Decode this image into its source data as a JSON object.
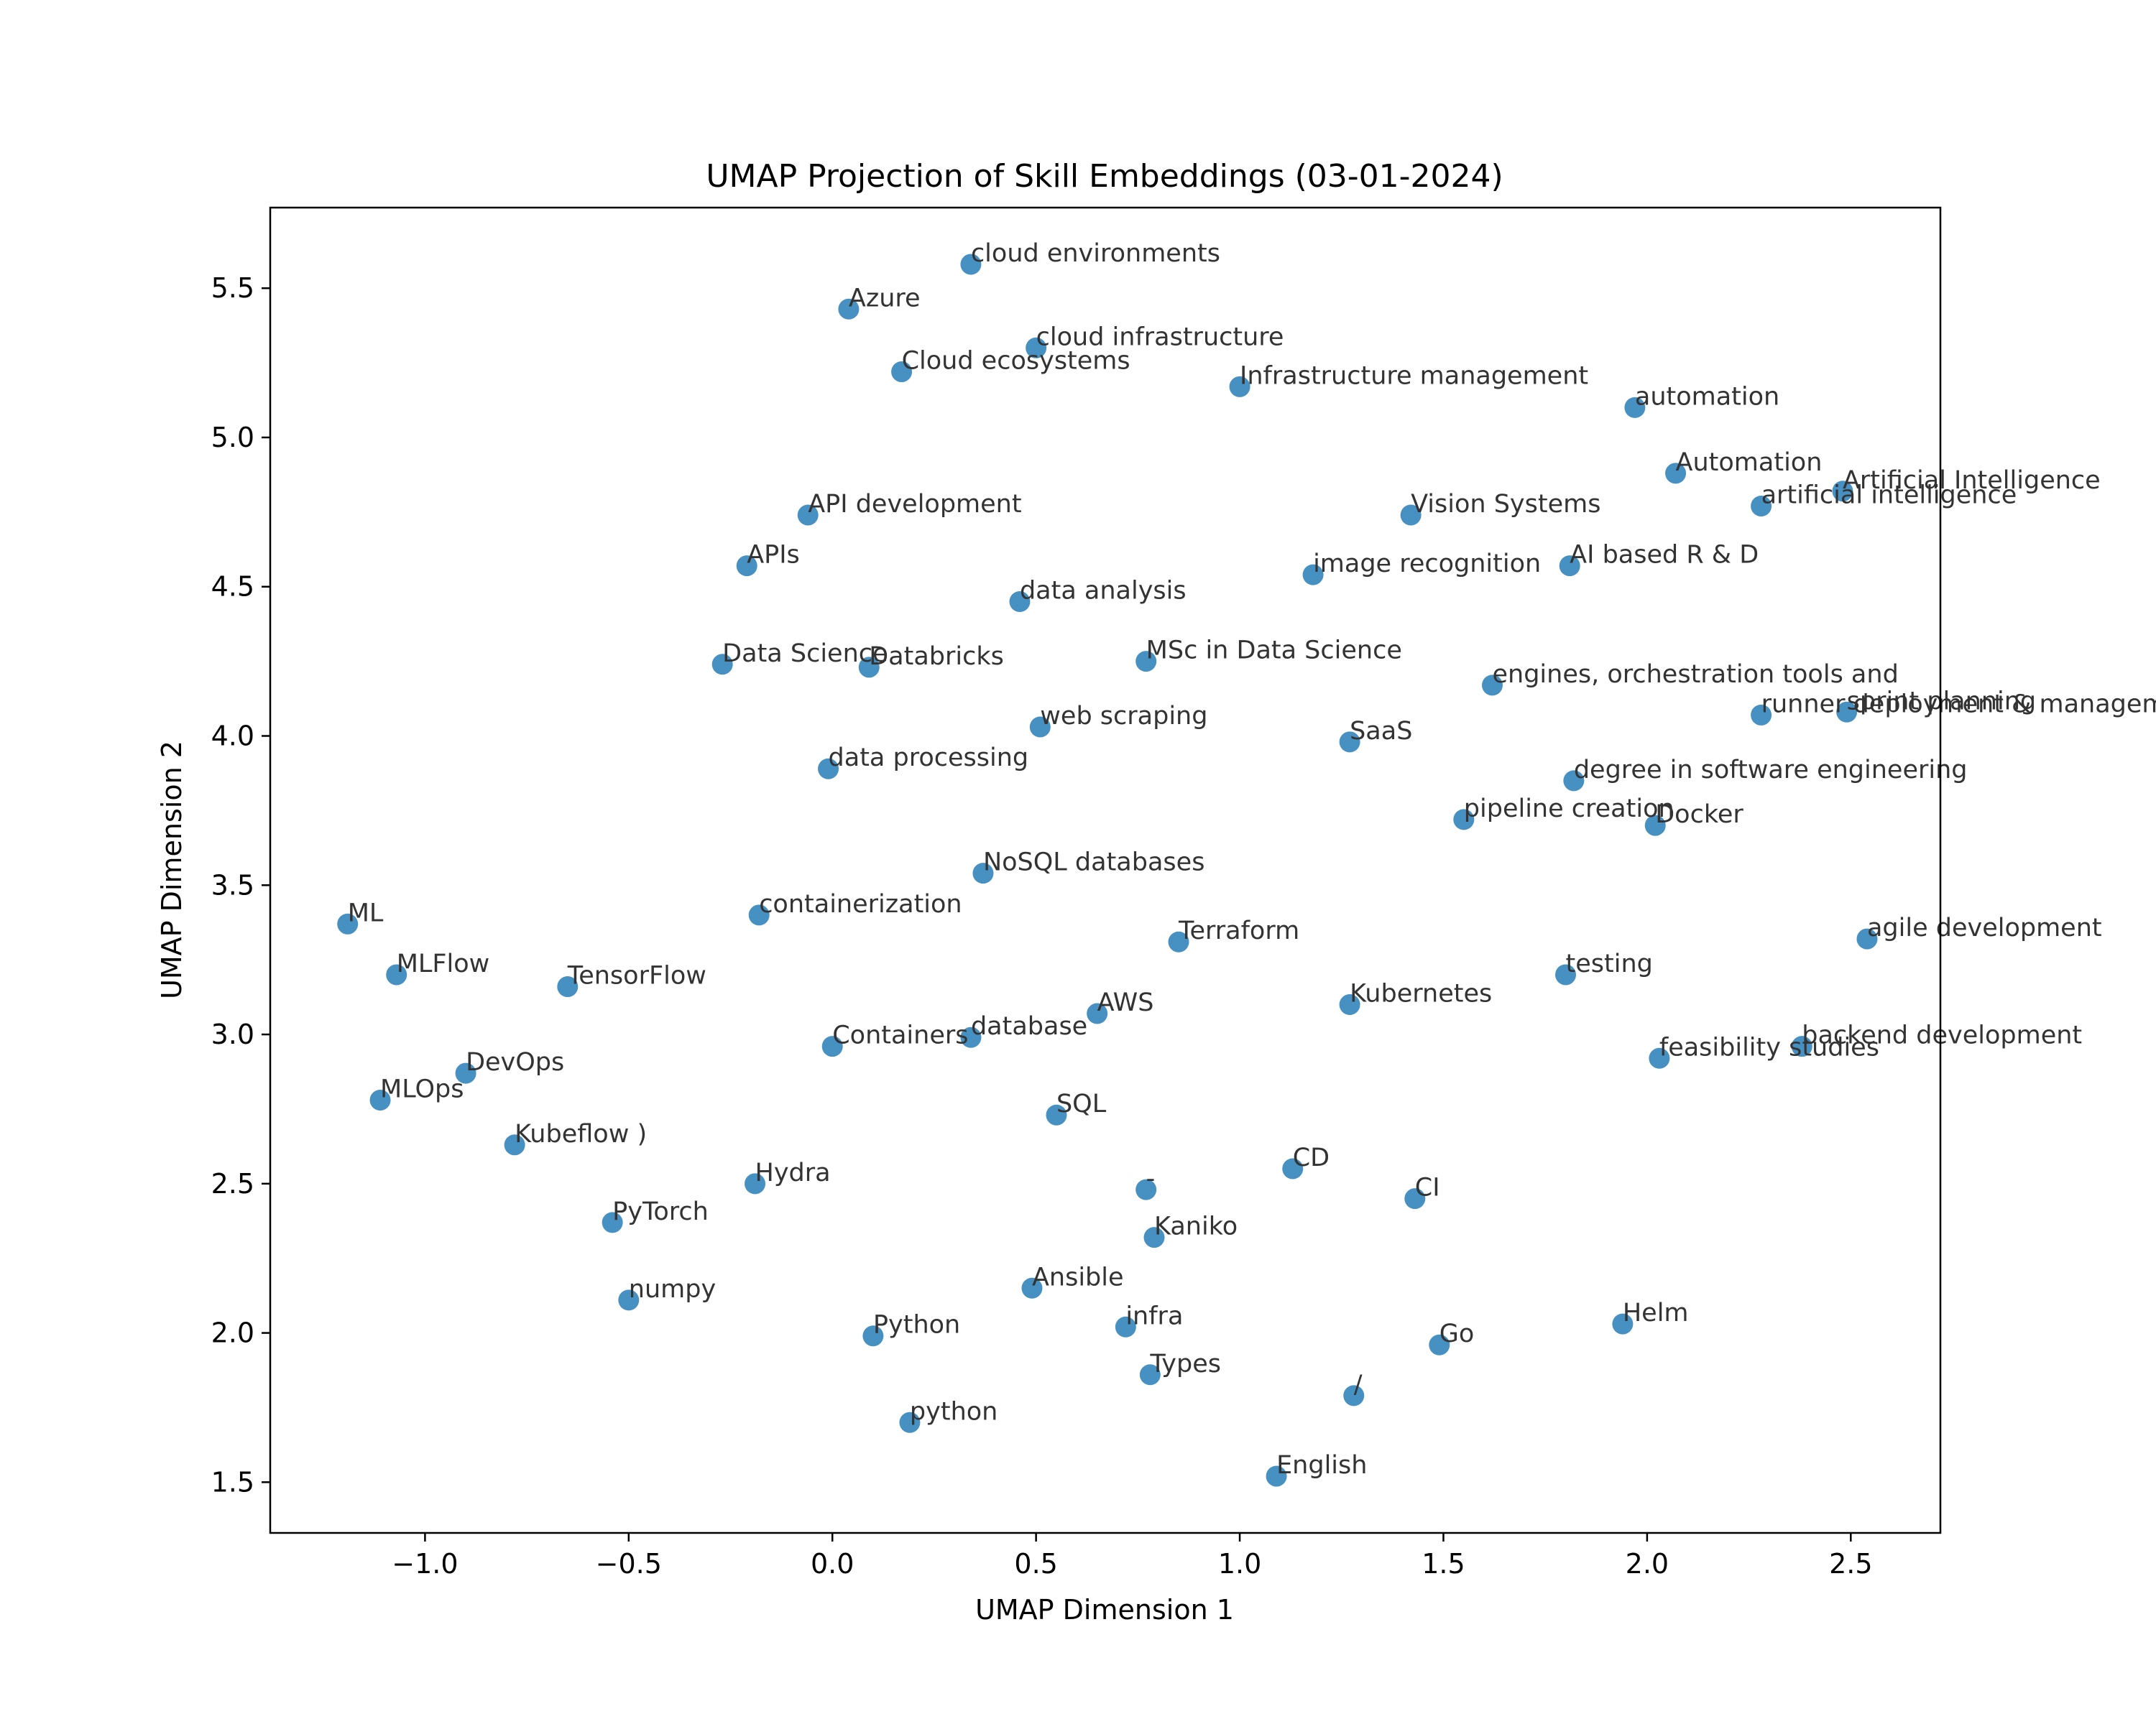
{
  "chart_data": {
    "type": "scatter",
    "title": "UMAP Projection of Skill Embeddings (03-01-2024)",
    "xlabel": "UMAP Dimension 1",
    "ylabel": "UMAP Dimension 2",
    "xlim": [
      -1.38,
      2.72
    ],
    "ylim": [
      1.33,
      5.77
    ],
    "xticks": [
      -1.0,
      -0.5,
      0.0,
      0.5,
      1.0,
      1.5,
      2.0,
      2.5
    ],
    "xtick_labels": [
      "−1.0",
      "−0.5",
      "0.0",
      "0.5",
      "1.0",
      "1.5",
      "2.0",
      "2.5"
    ],
    "yticks": [
      1.5,
      2.0,
      2.5,
      3.0,
      3.5,
      4.0,
      4.5,
      5.0,
      5.5
    ],
    "ytick_labels": [
      "1.5",
      "2.0",
      "2.5",
      "3.0",
      "3.5",
      "4.0",
      "4.5",
      "5.0",
      "5.5"
    ],
    "grid": false,
    "marker_color": "#1f77b4",
    "points": [
      {
        "label": "cloud environments",
        "x": 0.34,
        "y": 5.58
      },
      {
        "label": "Azure",
        "x": 0.04,
        "y": 5.43
      },
      {
        "label": "cloud infrastructure",
        "x": 0.5,
        "y": 5.3
      },
      {
        "label": "Cloud ecosystems",
        "x": 0.17,
        "y": 5.22
      },
      {
        "label": "Infrastructure management",
        "x": 1.0,
        "y": 5.17
      },
      {
        "label": "automation",
        "x": 1.97,
        "y": 5.1
      },
      {
        "label": "Automation",
        "x": 2.07,
        "y": 4.88
      },
      {
        "label": "Artificial Intelligence",
        "x": 2.48,
        "y": 4.82
      },
      {
        "label": "artificial intelligence",
        "x": 2.28,
        "y": 4.77
      },
      {
        "label": "API development",
        "x": -0.06,
        "y": 4.74
      },
      {
        "label": "Vision Systems",
        "x": 1.42,
        "y": 4.74
      },
      {
        "label": "APIs",
        "x": -0.21,
        "y": 4.57
      },
      {
        "label": "AI based R & D",
        "x": 1.81,
        "y": 4.57
      },
      {
        "label": "image recognition",
        "x": 1.18,
        "y": 4.54
      },
      {
        "label": "data analysis",
        "x": 0.46,
        "y": 4.45
      },
      {
        "label": "Data Science",
        "x": -0.27,
        "y": 4.24
      },
      {
        "label": "Databricks",
        "x": 0.09,
        "y": 4.23
      },
      {
        "label": "MSc in Data Science",
        "x": 0.77,
        "y": 4.25
      },
      {
        "label": "engines, orchestration tools and",
        "x": 1.62,
        "y": 4.17
      },
      {
        "label": "runner deployment & management",
        "x": 2.28,
        "y": 4.07
      },
      {
        "label": "sprint planning",
        "x": 2.49,
        "y": 4.08
      },
      {
        "label": "web scraping",
        "x": 0.51,
        "y": 4.03
      },
      {
        "label": "SaaS",
        "x": 1.27,
        "y": 3.98
      },
      {
        "label": "data processing",
        "x": -0.01,
        "y": 3.89
      },
      {
        "label": "degree in software engineering",
        "x": 1.82,
        "y": 3.85
      },
      {
        "label": "pipeline creation",
        "x": 1.55,
        "y": 3.72
      },
      {
        "label": "Docker",
        "x": 2.02,
        "y": 3.7
      },
      {
        "label": "NoSQL databases",
        "x": 0.37,
        "y": 3.54
      },
      {
        "label": "containerization",
        "x": -0.18,
        "y": 3.4
      },
      {
        "label": "ML",
        "x": -1.19,
        "y": 3.37
      },
      {
        "label": "Terraform",
        "x": 0.85,
        "y": 3.31
      },
      {
        "label": "agile development",
        "x": 2.54,
        "y": 3.32
      },
      {
        "label": "MLFlow",
        "x": -1.07,
        "y": 3.2
      },
      {
        "label": "testing",
        "x": 1.8,
        "y": 3.2
      },
      {
        "label": "TensorFlow",
        "x": -0.65,
        "y": 3.16
      },
      {
        "label": "Kubernetes",
        "x": 1.27,
        "y": 3.1
      },
      {
        "label": "AWS",
        "x": 0.65,
        "y": 3.07
      },
      {
        "label": "database",
        "x": 0.34,
        "y": 2.99
      },
      {
        "label": "Containers",
        "x": 0.0,
        "y": 2.96
      },
      {
        "label": "backend development",
        "x": 2.38,
        "y": 2.96
      },
      {
        "label": "feasibility studies",
        "x": 2.03,
        "y": 2.92
      },
      {
        "label": "DevOps",
        "x": -0.9,
        "y": 2.87
      },
      {
        "label": "MLOps",
        "x": -1.11,
        "y": 2.78
      },
      {
        "label": "SQL",
        "x": 0.55,
        "y": 2.73
      },
      {
        "label": "Kubeflow )",
        "x": -0.78,
        "y": 2.63
      },
      {
        "label": "CD",
        "x": 1.13,
        "y": 2.55
      },
      {
        "label": "Hydra",
        "x": -0.19,
        "y": 2.5
      },
      {
        "label": "-",
        "x": 0.77,
        "y": 2.48
      },
      {
        "label": "CI",
        "x": 1.43,
        "y": 2.45
      },
      {
        "label": "PyTorch",
        "x": -0.54,
        "y": 2.37
      },
      {
        "label": "Kaniko",
        "x": 0.79,
        "y": 2.32
      },
      {
        "label": "Ansible",
        "x": 0.49,
        "y": 2.15
      },
      {
        "label": "numpy",
        "x": -0.5,
        "y": 2.11
      },
      {
        "label": "Helm",
        "x": 1.94,
        "y": 2.03
      },
      {
        "label": "infra",
        "x": 0.72,
        "y": 2.02
      },
      {
        "label": "Python",
        "x": 0.1,
        "y": 1.99
      },
      {
        "label": "Go",
        "x": 1.49,
        "y": 1.96
      },
      {
        "label": "Types",
        "x": 0.78,
        "y": 1.86
      },
      {
        "label": "/",
        "x": 1.28,
        "y": 1.79
      },
      {
        "label": "python",
        "x": 0.19,
        "y": 1.7
      },
      {
        "label": "English",
        "x": 1.09,
        "y": 1.52
      }
    ]
  }
}
